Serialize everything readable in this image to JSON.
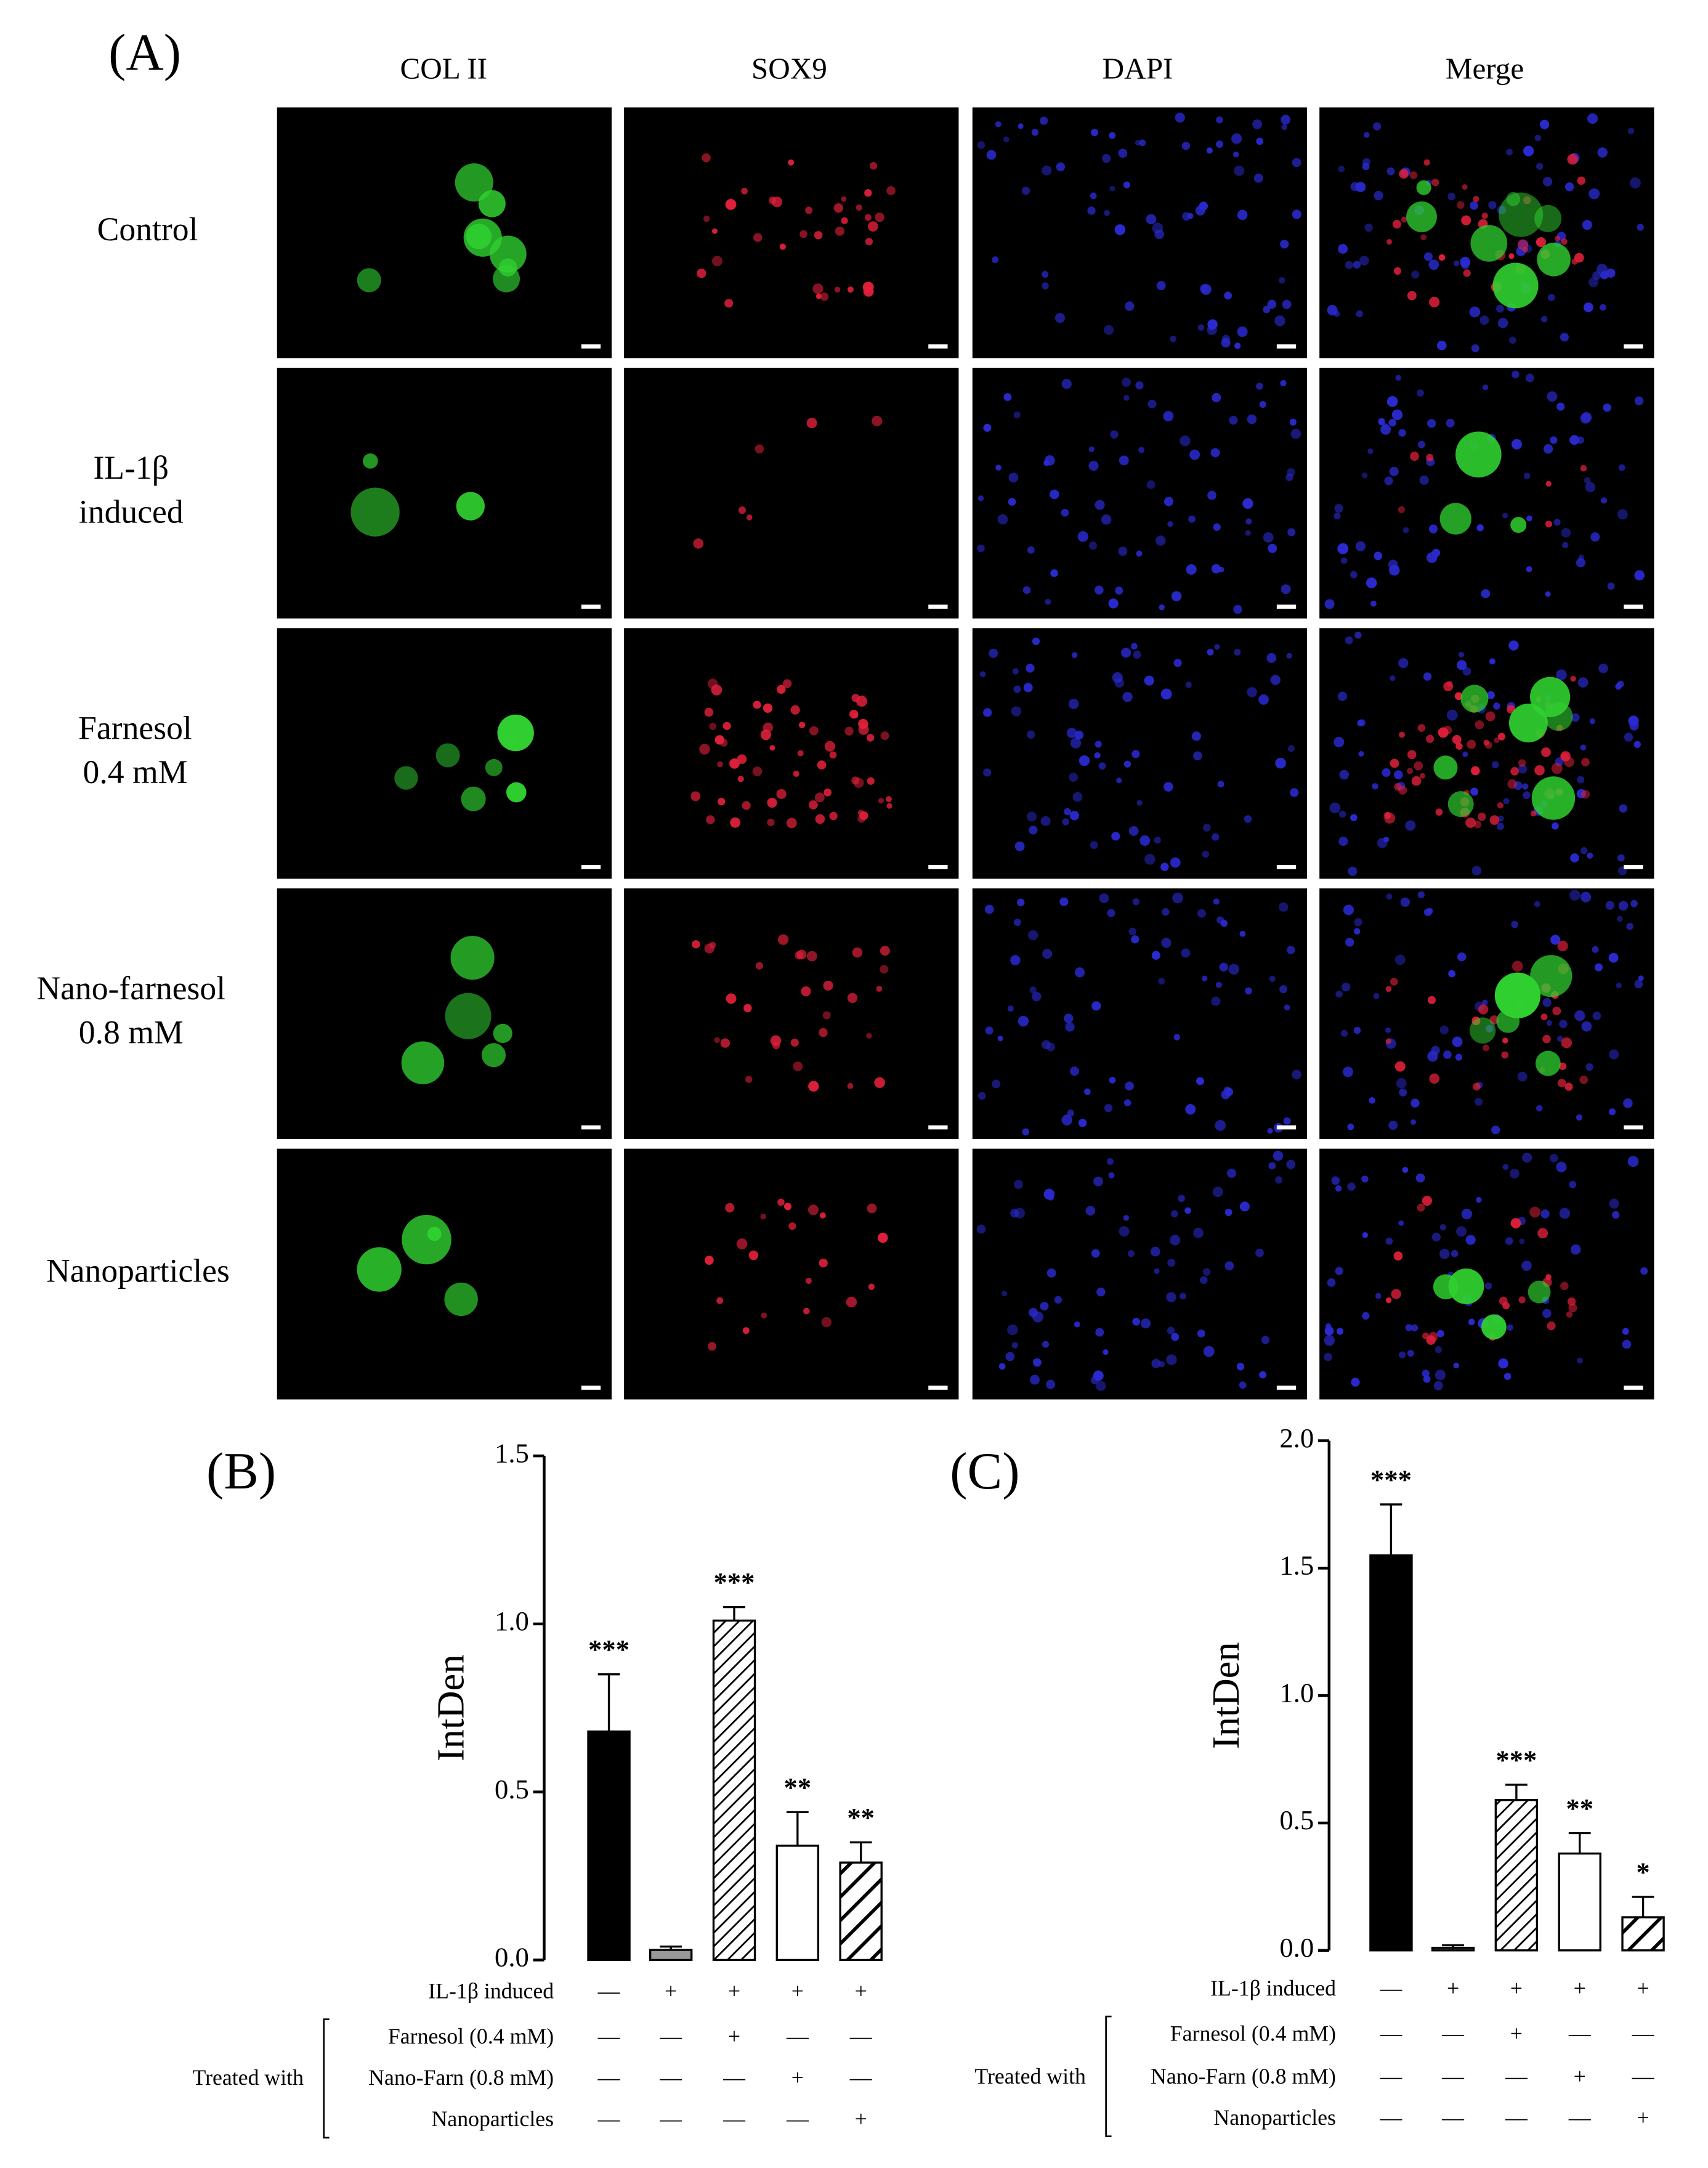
{
  "panel_a": {
    "label": "(A)",
    "columns": [
      "COL II",
      "SOX9",
      "DAPI",
      "Merge"
    ],
    "rows": [
      [
        "Control"
      ],
      [
        "IL-1β",
        "induced"
      ],
      [
        "Farnesol",
        "0.4 mM"
      ],
      [
        "Nano-farnesol",
        "0.8 mM"
      ],
      [
        "Nanoparticles"
      ]
    ]
  },
  "chart_data": [
    {
      "type": "bar",
      "panel_label": "(B)",
      "y_label": "IntDen",
      "values": [
        0.68,
        0.03,
        1.01,
        0.34,
        0.29
      ],
      "errors": [
        0.17,
        0.01,
        0.04,
        0.1,
        0.06
      ],
      "annotations": [
        "***",
        null,
        "***",
        "**",
        "**"
      ],
      "fills": [
        "black",
        "gray",
        "hatch",
        "white",
        "hatch-wide"
      ],
      "ylim": [
        0,
        1.5
      ],
      "yticks": [
        {
          "value": 0,
          "label": "0.0"
        },
        {
          "value": 0.5,
          "label": "0.5"
        },
        {
          "value": 1,
          "label": "1.0"
        },
        {
          "value": 1.5,
          "label": "1.5"
        }
      ],
      "group_label": "Treated with",
      "conditions": [
        {
          "label": "IL-1β induced",
          "marks": [
            "—",
            "+",
            "+",
            "+",
            "+"
          ]
        },
        {
          "label": "Farnesol (0.4 mM)",
          "marks": [
            "—",
            "—",
            "+",
            "—",
            "—"
          ]
        },
        {
          "label": "Nano-Farn (0.8 mM)",
          "marks": [
            "—",
            "—",
            "—",
            "+",
            "—"
          ]
        },
        {
          "label": "Nanoparticles",
          "marks": [
            "—",
            "—",
            "—",
            "—",
            "+"
          ]
        }
      ]
    },
    {
      "type": "bar",
      "panel_label": "(C)",
      "y_label": "IntDen",
      "values": [
        1.55,
        0.01,
        0.59,
        0.38,
        0.13
      ],
      "errors": [
        0.2,
        0.01,
        0.06,
        0.08,
        0.08
      ],
      "annotations": [
        "***",
        null,
        "***",
        "**",
        "*"
      ],
      "fills": [
        "black",
        "gray",
        "hatch",
        "white",
        "hatch-wide"
      ],
      "ylim": [
        0,
        2
      ],
      "yticks": [
        {
          "value": 0,
          "label": "0.0"
        },
        {
          "value": 0.5,
          "label": "0.5"
        },
        {
          "value": 1,
          "label": "1.0"
        },
        {
          "value": 1.5,
          "label": "1.5"
        },
        {
          "value": 2,
          "label": "2.0"
        }
      ],
      "group_label": "Treated with",
      "conditions": [
        {
          "label": "IL-1β induced",
          "marks": [
            "—",
            "+",
            "+",
            "+",
            "+"
          ]
        },
        {
          "label": "Farnesol (0.4 mM)",
          "marks": [
            "—",
            "—",
            "+",
            "—",
            "—"
          ]
        },
        {
          "label": "Nano-Farn (0.8 mM)",
          "marks": [
            "—",
            "—",
            "—",
            "+",
            "—"
          ]
        },
        {
          "label": "Nanoparticles",
          "marks": [
            "—",
            "—",
            "—",
            "—",
            "+"
          ]
        }
      ]
    }
  ]
}
